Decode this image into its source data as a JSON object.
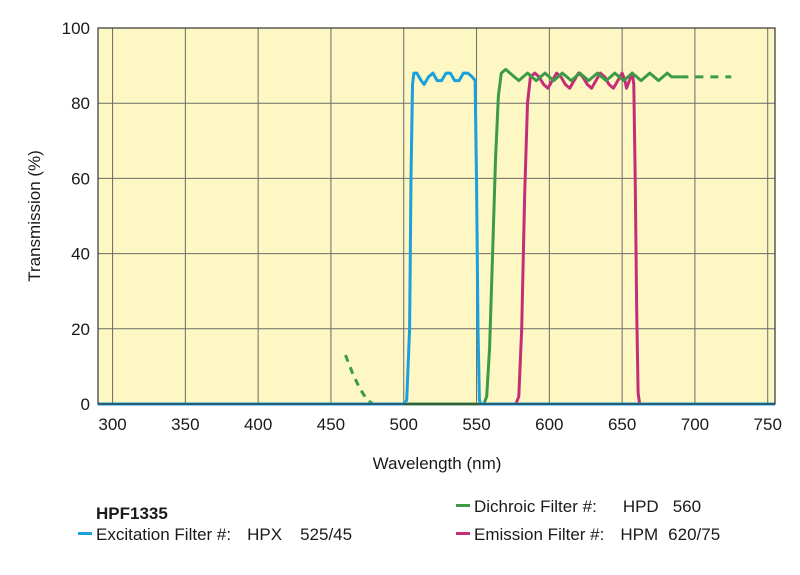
{
  "chart_data": {
    "type": "line",
    "title": "",
    "xlabel": "Wavelength (nm)",
    "ylabel": "Transmission (%)",
    "xlim": [
      290,
      755
    ],
    "ylim": [
      0,
      100
    ],
    "x_ticks": [
      300,
      350,
      400,
      450,
      500,
      550,
      600,
      650,
      700,
      750
    ],
    "y_ticks": [
      0,
      20,
      40,
      60,
      80,
      100
    ],
    "grid": true,
    "background": "#fdf7c3",
    "series": [
      {
        "name": "Excitation Filter #:",
        "code": "HPX",
        "spec": "525/45",
        "color": "#1aa0dc",
        "points": [
          [
            290,
            0
          ],
          [
            500,
            0
          ],
          [
            502,
            1
          ],
          [
            504,
            20
          ],
          [
            505,
            60
          ],
          [
            506,
            85
          ],
          [
            507,
            88
          ],
          [
            509,
            88
          ],
          [
            512,
            86
          ],
          [
            514,
            85
          ],
          [
            517,
            87
          ],
          [
            520,
            88
          ],
          [
            523,
            86
          ],
          [
            526,
            86
          ],
          [
            529,
            88
          ],
          [
            532,
            88
          ],
          [
            535,
            86
          ],
          [
            538,
            86
          ],
          [
            541,
            88
          ],
          [
            544,
            88
          ],
          [
            547,
            87
          ],
          [
            549,
            86
          ],
          [
            550,
            60
          ],
          [
            551,
            20
          ],
          [
            552,
            1
          ],
          [
            553,
            0
          ],
          [
            755,
            0
          ]
        ],
        "dashed_points": []
      },
      {
        "name": "Dichroic Filter #:",
        "code": "HPD",
        "spec": "560",
        "color": "#3c9a4a",
        "points": [
          [
            290,
            0
          ],
          [
            555,
            0
          ],
          [
            557,
            2
          ],
          [
            559,
            15
          ],
          [
            561,
            40
          ],
          [
            563,
            65
          ],
          [
            565,
            82
          ],
          [
            567,
            88
          ],
          [
            570,
            89
          ],
          [
            573,
            88
          ],
          [
            576,
            87
          ],
          [
            579,
            86
          ],
          [
            582,
            87
          ],
          [
            585,
            88
          ],
          [
            588,
            87
          ],
          [
            591,
            86
          ],
          [
            594,
            87
          ],
          [
            597,
            88
          ],
          [
            600,
            87
          ],
          [
            603,
            86
          ],
          [
            606,
            87
          ],
          [
            609,
            88
          ],
          [
            612,
            87
          ],
          [
            615,
            86
          ],
          [
            618,
            87
          ],
          [
            621,
            88
          ],
          [
            624,
            87
          ],
          [
            627,
            86
          ],
          [
            630,
            87
          ],
          [
            633,
            88
          ],
          [
            636,
            87
          ],
          [
            639,
            86
          ],
          [
            642,
            87
          ],
          [
            645,
            88
          ],
          [
            648,
            87
          ],
          [
            651,
            86
          ],
          [
            654,
            87
          ],
          [
            657,
            88
          ],
          [
            660,
            87
          ],
          [
            663,
            86
          ],
          [
            666,
            87
          ],
          [
            669,
            88
          ],
          [
            672,
            87
          ],
          [
            675,
            86
          ],
          [
            678,
            87
          ],
          [
            681,
            88
          ],
          [
            684,
            87
          ],
          [
            690,
            87
          ]
        ],
        "dashed_points": [
          [
            690,
            87
          ],
          [
            725,
            87
          ]
        ],
        "dashed_points_left": [
          [
            460,
            13
          ],
          [
            465,
            8
          ],
          [
            470,
            4
          ],
          [
            475,
            1
          ],
          [
            479,
            0
          ]
        ]
      },
      {
        "name": "Emission Filter #:",
        "code": "HPM",
        "spec": "620/75",
        "color": "#c42e78",
        "points": [
          [
            290,
            0
          ],
          [
            577,
            0
          ],
          [
            579,
            2
          ],
          [
            581,
            20
          ],
          [
            583,
            55
          ],
          [
            585,
            80
          ],
          [
            587,
            87
          ],
          [
            590,
            88
          ],
          [
            593,
            87
          ],
          [
            596,
            85
          ],
          [
            599,
            84
          ],
          [
            602,
            86
          ],
          [
            605,
            88
          ],
          [
            608,
            87
          ],
          [
            611,
            85
          ],
          [
            614,
            84
          ],
          [
            617,
            86
          ],
          [
            620,
            88
          ],
          [
            623,
            87
          ],
          [
            626,
            85
          ],
          [
            629,
            84
          ],
          [
            632,
            86
          ],
          [
            635,
            88
          ],
          [
            638,
            87
          ],
          [
            641,
            85
          ],
          [
            644,
            84
          ],
          [
            647,
            86
          ],
          [
            650,
            88
          ],
          [
            652,
            86
          ],
          [
            653,
            84
          ],
          [
            655,
            86
          ],
          [
            657,
            88
          ],
          [
            658,
            85
          ],
          [
            659,
            60
          ],
          [
            660,
            25
          ],
          [
            661,
            3
          ],
          [
            662,
            0
          ],
          [
            755,
            0
          ]
        ],
        "dashed_points": []
      }
    ]
  },
  "legend": {
    "product": "HPF1335"
  }
}
